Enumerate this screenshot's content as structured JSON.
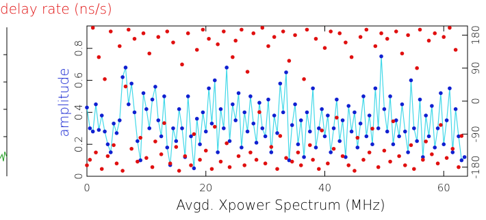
{
  "chart_data": {
    "type": "scatter",
    "title": "delay rate (ns/s)",
    "x_label": "Avgd. Xpower Spectrum (MHz)",
    "y_label": "amplitude",
    "xlim": [
      0,
      64
    ],
    "ylim": [
      0,
      0.94
    ],
    "y2lim": [
      -205,
      205
    ],
    "xticks": [
      0,
      20,
      40,
      60
    ],
    "yticks": [
      0,
      0.2,
      0.4,
      0.6,
      0.8
    ],
    "y2ticks": [
      -180,
      -90,
      0,
      90,
      180
    ],
    "x": [
      0,
      0.5,
      1,
      1.5,
      2,
      2.5,
      3,
      3.5,
      4,
      4.5,
      5,
      5.5,
      6,
      6.5,
      7,
      7.5,
      8,
      8.5,
      9,
      9.5,
      10,
      10.5,
      11,
      11.5,
      12,
      12.5,
      13,
      13.5,
      14,
      14.5,
      15,
      15.5,
      16,
      16.5,
      17,
      17.5,
      18,
      18.5,
      19,
      19.5,
      20,
      20.5,
      21,
      21.5,
      22,
      22.5,
      23,
      23.5,
      24,
      24.5,
      25,
      25.5,
      26,
      26.5,
      27,
      27.5,
      28,
      28.5,
      29,
      29.5,
      30,
      30.5,
      31,
      31.5,
      32,
      32.5,
      33,
      33.5,
      34,
      34.5,
      35,
      35.5,
      36,
      36.5,
      37,
      37.5,
      38,
      38.5,
      39,
      39.5,
      40,
      40.5,
      41,
      41.5,
      42,
      42.5,
      43,
      43.5,
      44,
      44.5,
      45,
      45.5,
      46,
      46.5,
      47,
      47.5,
      48,
      48.5,
      49,
      49.5,
      50,
      50.5,
      51,
      51.5,
      52,
      52.5,
      53,
      53.5,
      54,
      54.5,
      55,
      55.5,
      56,
      56.5,
      57,
      57.5,
      58,
      58.5,
      59,
      59.5,
      60,
      60.5,
      61,
      61.5,
      62,
      62.5,
      63,
      63.5
    ],
    "series": [
      {
        "color": "#1020d0",
        "line_color": "#40d8e8",
        "values": [
          0.43,
          0.3,
          0.28,
          0.45,
          0.29,
          0.38,
          0.28,
          0.2,
          0.15,
          0.33,
          0.27,
          0.35,
          0.62,
          0.68,
          0.45,
          0.58,
          0.4,
          0.22,
          0.1,
          0.52,
          0.42,
          0.3,
          0.48,
          0.56,
          0.35,
          0.25,
          0.5,
          0.18,
          0.07,
          0.3,
          0.22,
          0.42,
          0.3,
          0.12,
          0.5,
          0.25,
          0.05,
          0.36,
          0.2,
          0.4,
          0.28,
          0.55,
          0.33,
          0.6,
          0.15,
          0.42,
          0.3,
          0.68,
          0.22,
          0.45,
          0.35,
          0.52,
          0.18,
          0.4,
          0.28,
          0.5,
          0.33,
          0.21,
          0.46,
          0.3,
          0.25,
          0.48,
          0.15,
          0.38,
          0.27,
          0.58,
          0.4,
          0.65,
          0.1,
          0.32,
          0.45,
          0.2,
          0.35,
          0.12,
          0.4,
          0.28,
          0.55,
          0.18,
          0.3,
          0.42,
          0.25,
          0.38,
          0.15,
          0.3,
          0.48,
          0.22,
          0.35,
          0.12,
          0.44,
          0.28,
          0.4,
          0.18,
          0.33,
          0.5,
          0.25,
          0.38,
          0.2,
          0.55,
          0.3,
          0.75,
          0.42,
          0.28,
          0.5,
          0.2,
          0.35,
          0.25,
          0.45,
          0.28,
          0.15,
          0.6,
          0.3,
          0.22,
          0.48,
          0.12,
          0.38,
          0.25,
          0.44,
          0.18,
          0.3,
          0.52,
          0.2,
          0.35,
          0.55,
          0.15,
          0.42,
          0.25,
          0.1,
          0.12
        ]
      },
      {
        "color": "#e01010",
        "axis": "y2",
        "values": [
          -175,
          -160,
          200,
          -140,
          120,
          -185,
          60,
          -150,
          190,
          -120,
          -170,
          150,
          -190,
          40,
          195,
          -130,
          170,
          -165,
          -100,
          185,
          -155,
          130,
          -180,
          -110,
          175,
          -145,
          -60,
          190,
          -170,
          160,
          -125,
          -190,
          100,
          -150,
          185,
          -175,
          -90,
          140,
          -160,
          195,
          -135,
          170,
          -185,
          -70,
          155,
          -165,
          190,
          -115,
          -180,
          120,
          165,
          -150,
          195,
          -175,
          80,
          -140,
          185,
          -160,
          -30,
          200,
          -170,
          150,
          -125,
          175,
          -185,
          -95,
          190,
          -155,
          110,
          -165,
          180,
          -140,
          -175,
          60,
          195,
          -120,
          -160,
          170,
          -185,
          -80,
          145,
          -170,
          190,
          -130,
          -45,
          185,
          -150,
          160,
          -175,
          120,
          -190,
          -100,
          175,
          -160,
          195,
          -140,
          -75,
          150,
          -180,
          185,
          -135,
          170,
          -165,
          -55,
          190,
          -150,
          130,
          -175,
          180,
          -120,
          -185,
          90,
          195,
          -160,
          -110,
          165,
          -145,
          185,
          -170,
          -65,
          175,
          -155,
          200,
          -130,
          140,
          -180,
          -95
        ]
      }
    ]
  }
}
